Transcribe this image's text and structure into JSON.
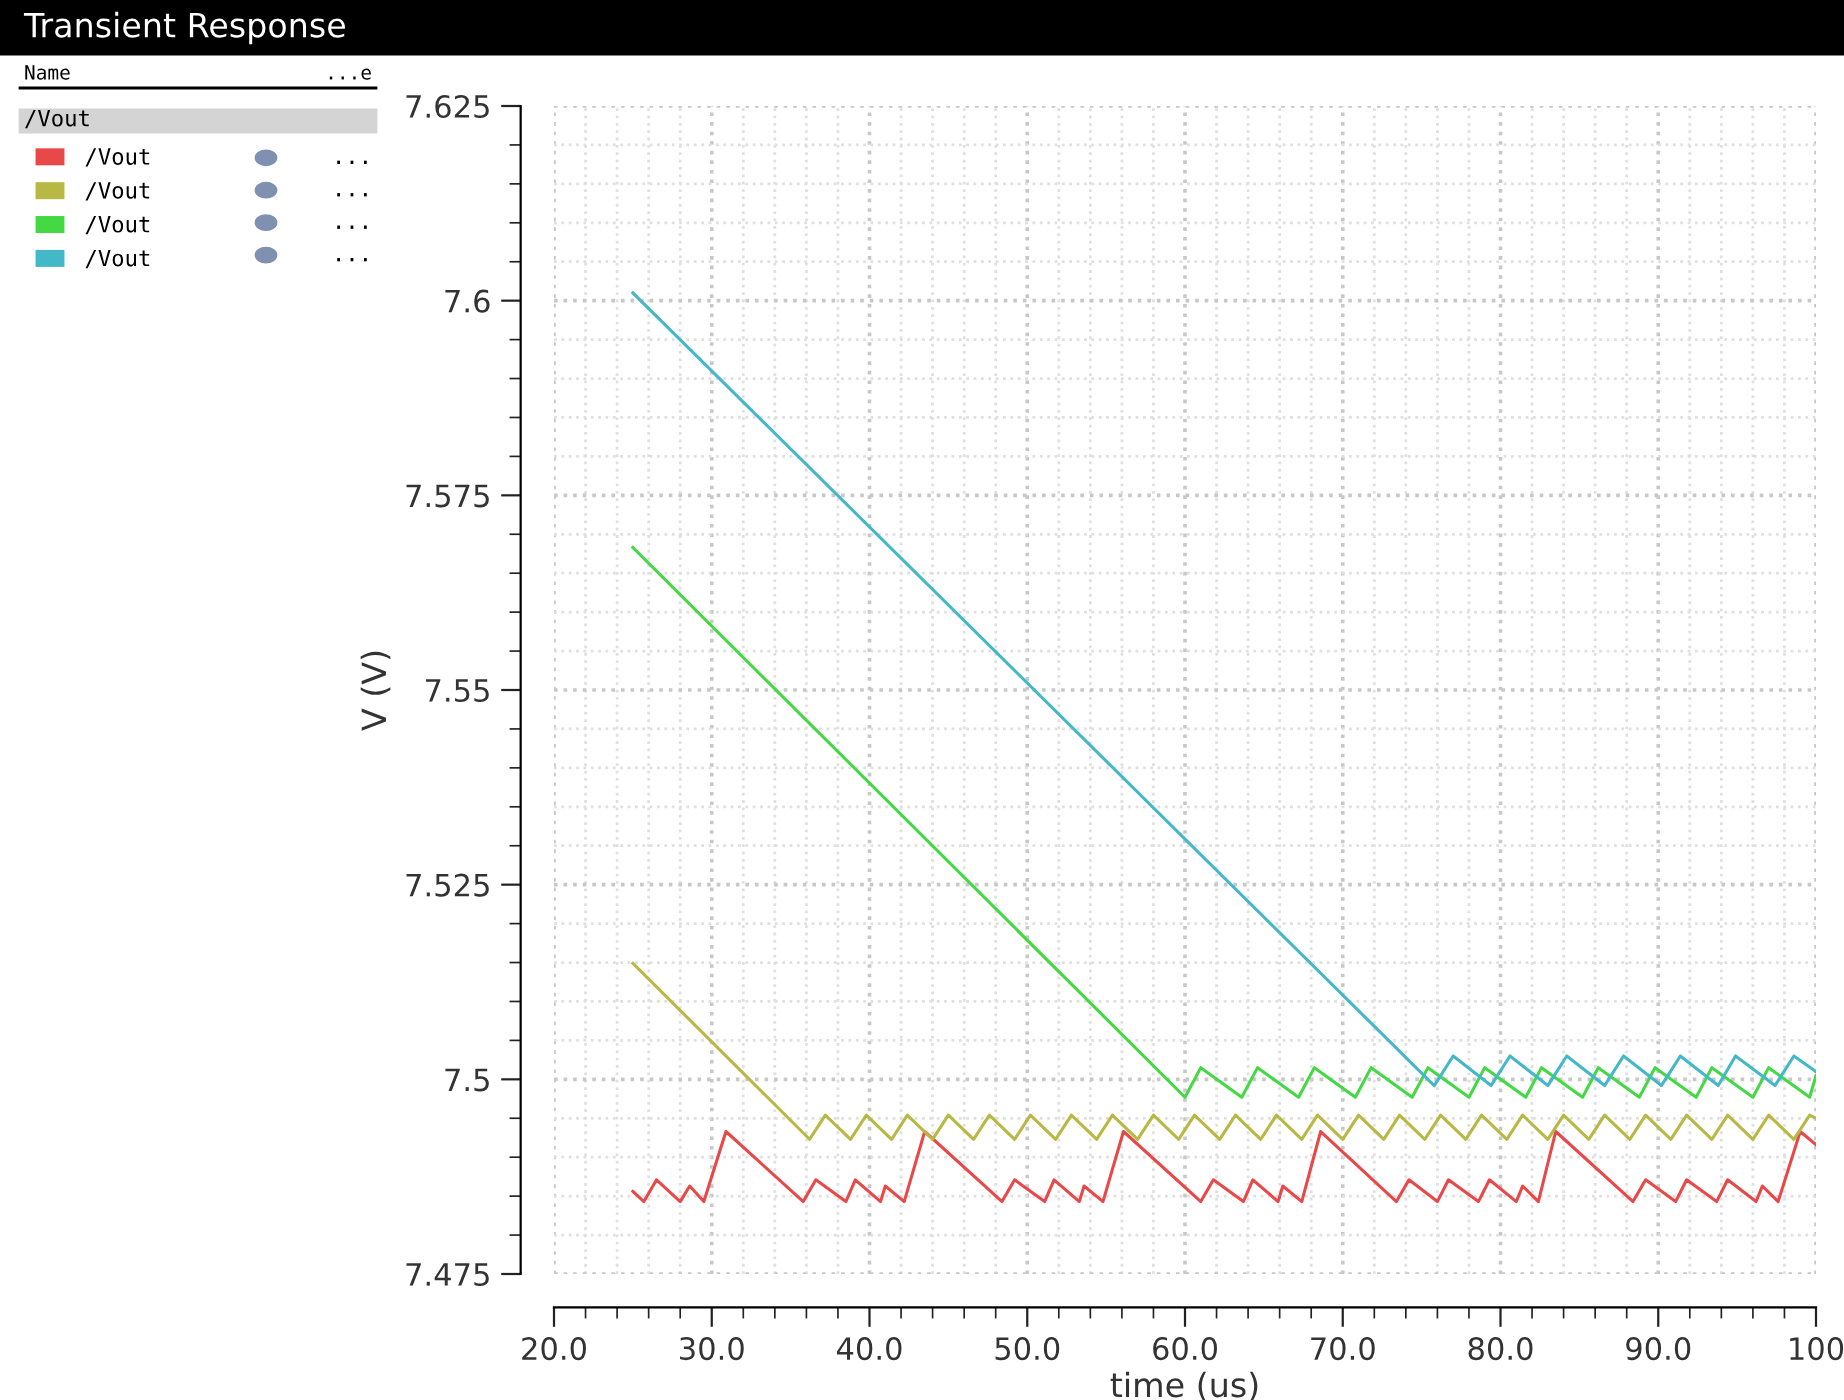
{
  "chart_data": {
    "type": "line",
    "title": "Transient Response",
    "xlabel": "time (us)",
    "ylabel": "V (V)",
    "xlim": [
      20,
      100
    ],
    "ylim": [
      7.475,
      7.625
    ],
    "xticks": [
      {
        "value": 20,
        "label": "20.0"
      },
      {
        "value": 30,
        "label": "30.0"
      },
      {
        "value": 40,
        "label": "40.0"
      },
      {
        "value": 50,
        "label": "50.0"
      },
      {
        "value": 60,
        "label": "60.0"
      },
      {
        "value": 70,
        "label": "70.0"
      },
      {
        "value": 80,
        "label": "80.0"
      },
      {
        "value": 90,
        "label": "90.0"
      },
      {
        "value": 100,
        "label": "100"
      }
    ],
    "yticks": [
      7.475,
      7.5,
      7.525,
      7.55,
      7.575,
      7.6,
      7.625
    ],
    "grid": true,
    "legend": "left",
    "marker": "none",
    "line_style": "solid",
    "annotations": [
      "Name",
      "...e",
      "/Vout",
      "...",
      "...",
      "...",
      "..."
    ],
    "series": [
      {
        "name": "/Vout",
        "color": "#e84848",
        "x": [
          25.0,
          25.7,
          26.5,
          28.0,
          28.6,
          29.5,
          30.9,
          35.8,
          36.6,
          38.5,
          39.1,
          40.7,
          41.0,
          42.2,
          43.5,
          48.4,
          49.2,
          51.1,
          51.7,
          53.3,
          53.6,
          54.8,
          56.1,
          61.0,
          61.8,
          63.7,
          64.3,
          65.9,
          66.2,
          67.4,
          68.6,
          73.4,
          74.2,
          76.0,
          76.7,
          78.6,
          79.3,
          81.0,
          81.4,
          82.4,
          83.5,
          88.4,
          89.2,
          91.1,
          91.8,
          93.7,
          94.4,
          96.2,
          96.6,
          97.6,
          99.0,
          100.0
        ],
        "values": [
          7.4856,
          7.4843,
          7.4871,
          7.4843,
          7.4863,
          7.4843,
          7.4933,
          7.4843,
          7.4871,
          7.4843,
          7.4871,
          7.4843,
          7.4863,
          7.4843,
          7.4933,
          7.4843,
          7.4871,
          7.4843,
          7.4871,
          7.4843,
          7.4863,
          7.4843,
          7.4933,
          7.4843,
          7.4871,
          7.4843,
          7.4871,
          7.4843,
          7.4863,
          7.4843,
          7.4933,
          7.4843,
          7.4871,
          7.4843,
          7.4871,
          7.4843,
          7.4871,
          7.4843,
          7.4863,
          7.4843,
          7.4933,
          7.4843,
          7.4871,
          7.4843,
          7.4871,
          7.4843,
          7.4871,
          7.4843,
          7.4863,
          7.4843,
          7.4933,
          7.4916
        ]
      },
      {
        "name": "/Vout",
        "color": "#b8b844",
        "x": [
          25.0,
          36.2,
          37.2,
          38.8,
          39.8,
          41.4,
          42.4,
          44.0,
          45.0,
          46.6,
          47.6,
          49.2,
          50.2,
          51.8,
          52.8,
          54.4,
          55.4,
          57.0,
          58.0,
          59.6,
          60.6,
          62.2,
          63.2,
          64.8,
          65.8,
          67.4,
          68.4,
          70.0,
          71.0,
          72.6,
          73.6,
          75.2,
          76.2,
          77.8,
          78.8,
          80.4,
          81.4,
          83.0,
          84.0,
          85.6,
          86.6,
          88.2,
          89.2,
          90.8,
          91.8,
          93.4,
          94.4,
          96.0,
          97.0,
          98.6,
          99.6,
          100.0
        ],
        "values": [
          7.5149,
          7.4923,
          7.4954,
          7.4923,
          7.4954,
          7.4923,
          7.4954,
          7.4923,
          7.4954,
          7.4923,
          7.4954,
          7.4923,
          7.4954,
          7.4923,
          7.4954,
          7.4923,
          7.4954,
          7.4923,
          7.4954,
          7.4923,
          7.4954,
          7.4923,
          7.4954,
          7.4923,
          7.4954,
          7.4923,
          7.4954,
          7.4923,
          7.4954,
          7.4923,
          7.4954,
          7.4923,
          7.4954,
          7.4923,
          7.4954,
          7.4923,
          7.4954,
          7.4923,
          7.4954,
          7.4923,
          7.4954,
          7.4923,
          7.4954,
          7.4923,
          7.4954,
          7.4923,
          7.4954,
          7.4923,
          7.4954,
          7.4923,
          7.4954,
          7.495
        ]
      },
      {
        "name": "/Vout",
        "color": "#44d844",
        "x": [
          25.0,
          60.0,
          61.0,
          63.6,
          64.6,
          67.2,
          68.2,
          70.8,
          71.8,
          74.4,
          75.4,
          78.0,
          79.0,
          81.6,
          82.6,
          85.2,
          86.2,
          88.8,
          89.8,
          92.4,
          93.4,
          96.0,
          97.0,
          99.6,
          100.0
        ],
        "values": [
          7.5683,
          7.4977,
          7.5015,
          7.4977,
          7.5015,
          7.4977,
          7.5015,
          7.4977,
          7.5015,
          7.4977,
          7.5015,
          7.4977,
          7.5015,
          7.4977,
          7.5015,
          7.4977,
          7.5015,
          7.4977,
          7.5015,
          7.4977,
          7.5015,
          7.4977,
          7.5015,
          7.4977,
          7.5005
        ]
      },
      {
        "name": "/Vout",
        "color": "#44b8c8",
        "x": [
          25.0,
          75.8,
          77.0,
          79.4,
          80.6,
          83.0,
          84.2,
          86.6,
          87.8,
          90.2,
          91.4,
          93.8,
          94.9,
          97.4,
          98.6,
          100.0
        ],
        "values": [
          7.601,
          7.4992,
          7.503,
          7.4992,
          7.503,
          7.4992,
          7.503,
          7.4992,
          7.503,
          7.4992,
          7.503,
          7.4992,
          7.503,
          7.4992,
          7.503,
          7.501
        ]
      }
    ]
  }
}
